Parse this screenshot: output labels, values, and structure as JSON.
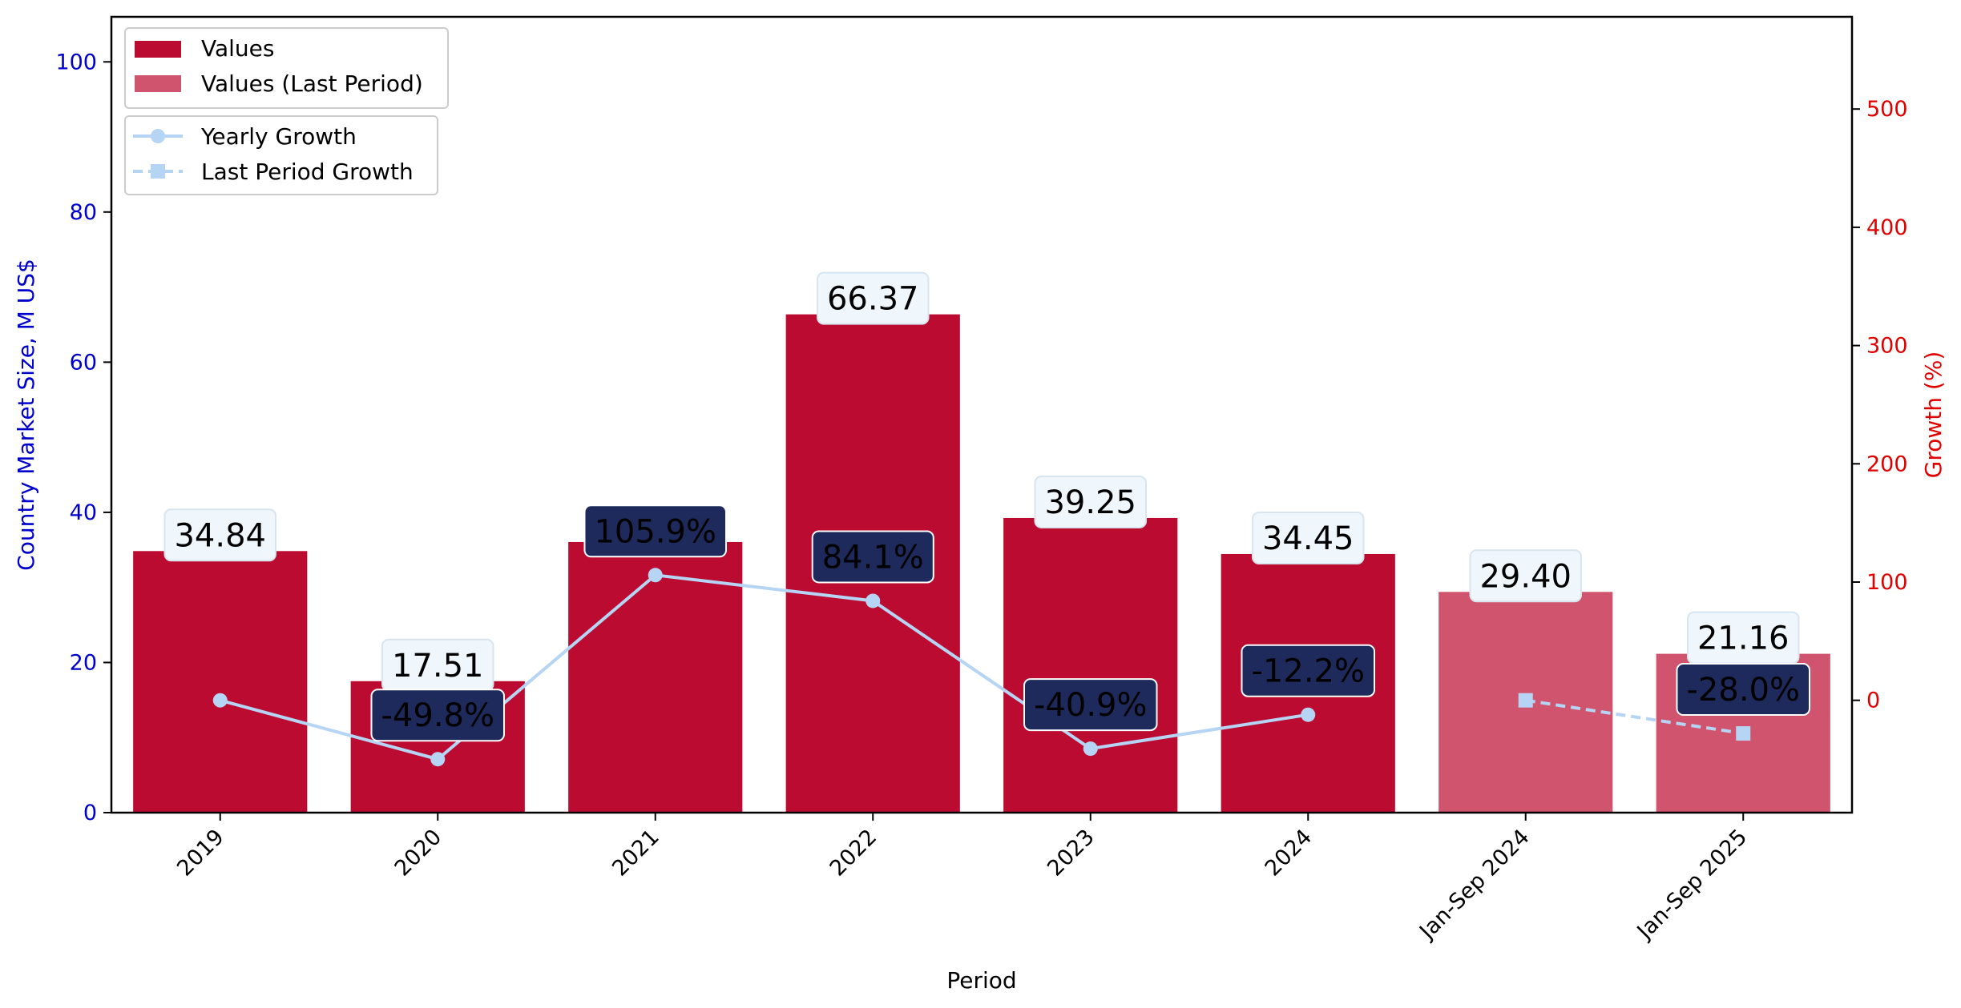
{
  "chart_data": {
    "type": "bar",
    "categories": [
      "2019",
      "2020",
      "2021",
      "2022",
      "2023",
      "2024",
      "Jan-Sep 2024",
      "Jan-Sep 2025"
    ],
    "values": [
      34.84,
      17.51,
      36.05,
      66.37,
      39.25,
      34.45,
      29.4,
      21.16
    ],
    "value_labels": [
      "34.84",
      "17.51",
      "",
      "66.37",
      "39.25",
      "34.45",
      "29.40",
      "21.16"
    ],
    "bar_kind": [
      "yearly",
      "yearly",
      "yearly",
      "yearly",
      "yearly",
      "yearly",
      "last_period",
      "last_period"
    ],
    "series": [
      {
        "name": "Values",
        "kind": "bar",
        "color": "#bb0b31"
      },
      {
        "name": "Values (Last Period)",
        "kind": "bar",
        "color": "#d0546d"
      },
      {
        "name": "Yearly Growth",
        "kind": "line",
        "axis": "right",
        "marker": "circle",
        "linestyle": "solid",
        "color": "#b6d4f3",
        "points": [
          {
            "category": "2019",
            "value": 0.0,
            "label": ""
          },
          {
            "category": "2020",
            "value": -49.8,
            "label": "-49.8%"
          },
          {
            "category": "2021",
            "value": 105.9,
            "label": "105.9%"
          },
          {
            "category": "2022",
            "value": 84.1,
            "label": "84.1%"
          },
          {
            "category": "2023",
            "value": -40.9,
            "label": "-40.9%"
          },
          {
            "category": "2024",
            "value": -12.2,
            "label": "-12.2%"
          }
        ]
      },
      {
        "name": "Last Period Growth",
        "kind": "line",
        "axis": "right",
        "marker": "square",
        "linestyle": "dashed",
        "color": "#b6d4f3",
        "points": [
          {
            "category": "Jan-Sep 2024",
            "value": 0.0,
            "label": ""
          },
          {
            "category": "Jan-Sep 2025",
            "value": -28.0,
            "label": "-28.0%"
          }
        ]
      }
    ],
    "xlabel": "Period",
    "ylabel": "Country Market Size, M US$",
    "y2label": "Growth (%)",
    "ylim": [
      0,
      106
    ],
    "y2lim": [
      -95,
      578
    ],
    "yticks": [
      0,
      20,
      40,
      60,
      80,
      100
    ],
    "y2ticks": [
      0,
      100,
      200,
      300,
      400,
      500
    ],
    "legend_placement": "top-left",
    "grid": false,
    "colors": {
      "left_axis": "#0000cc",
      "right_axis": "#e00000",
      "value_label_bg": "#eff6fc",
      "growth_label_bg": "#1e2a5c"
    }
  }
}
